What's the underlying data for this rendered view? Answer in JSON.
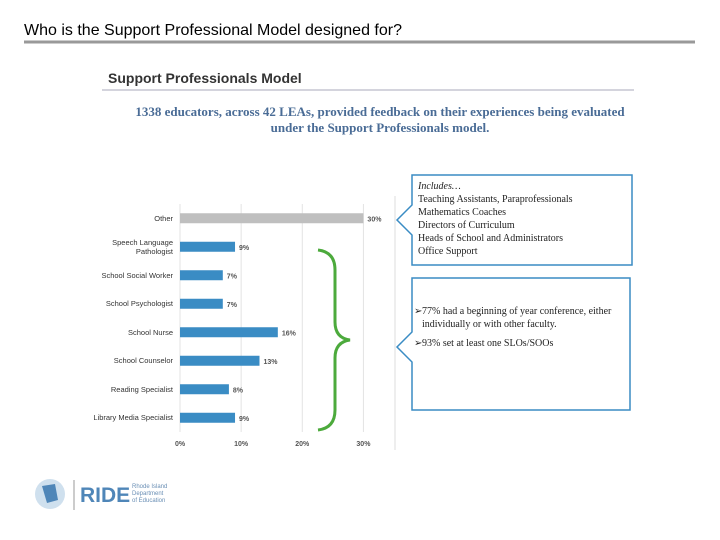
{
  "slide": {
    "title": "Who is the Support Professional Model designed for?"
  },
  "panel": {
    "heading": "Support Professionals Model",
    "subtitle": "1338 educators, across 42 LEAs, provided feedback on their experiences being evaluated under the Support Professionals model."
  },
  "chart_data": {
    "type": "bar",
    "orientation": "horizontal",
    "categories": [
      "Other",
      "Speech Language Pathologist",
      "School Social Worker",
      "School Psychologist",
      "School Nurse",
      "School Counselor",
      "Reading Specialist",
      "Library Media Specialist"
    ],
    "values": [
      30,
      9,
      7,
      7,
      16,
      13,
      8,
      9
    ],
    "value_labels": [
      "30%",
      "9%",
      "7%",
      "7%",
      "16%",
      "13%",
      "8%",
      "9%"
    ],
    "colors": [
      "#bfbfbf",
      "#3a8cc4",
      "#3a8cc4",
      "#3a8cc4",
      "#3a8cc4",
      "#3a8cc4",
      "#3a8cc4",
      "#3a8cc4"
    ],
    "xlim": [
      0,
      35
    ],
    "xticks": [
      {
        "value": 0,
        "label": "0%"
      },
      {
        "value": 10,
        "label": "10%"
      },
      {
        "value": 20,
        "label": "20%"
      },
      {
        "value": 30,
        "label": "30%"
      }
    ],
    "grid": true
  },
  "callouts": [
    {
      "heading": "Includes…",
      "lines": [
        "Teaching Assistants, Paraprofessionals",
        "Mathematics Coaches",
        "Directors of Curriculum",
        "Heads of School and Administrators",
        "Office Support"
      ]
    },
    {
      "bullets": [
        "77% had a beginning of year conference, either individually or with other faculty.",
        "93% set at least one SLOs/SOOs"
      ]
    }
  ],
  "logo": {
    "name": "RIDE",
    "org_lines": [
      "Rhode Island",
      "Department",
      "of Education"
    ]
  }
}
